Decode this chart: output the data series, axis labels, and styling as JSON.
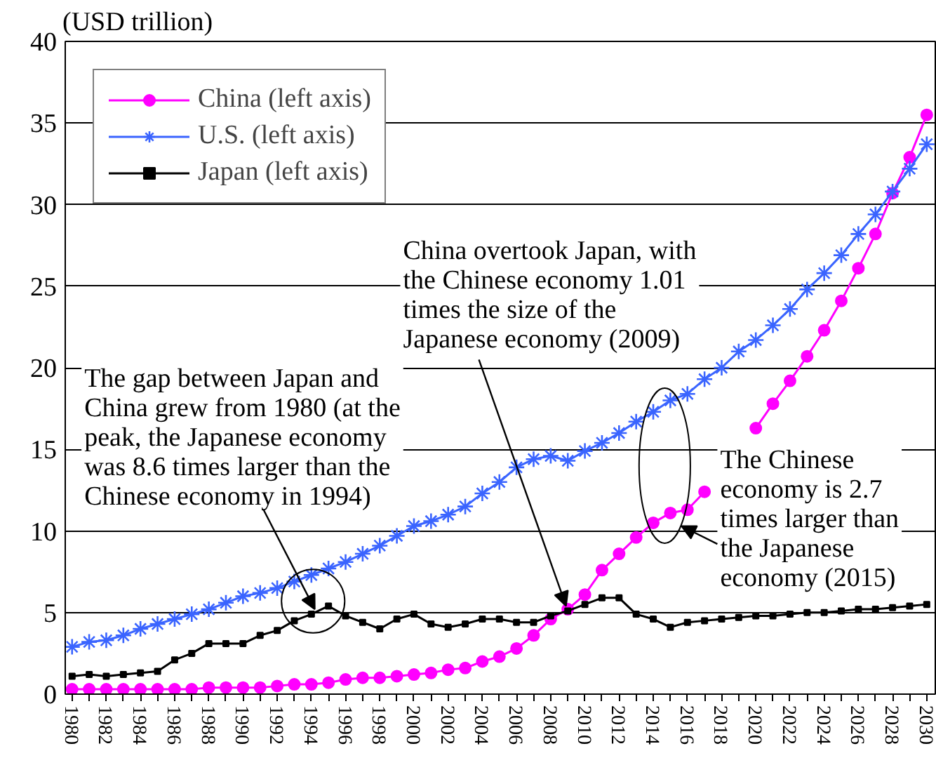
{
  "chart_data": {
    "type": "line",
    "ylabel": "(USD trillion)",
    "x": [
      1980,
      1981,
      1982,
      1983,
      1984,
      1985,
      1986,
      1987,
      1988,
      1989,
      1990,
      1991,
      1992,
      1993,
      1994,
      1995,
      1996,
      1997,
      1998,
      1999,
      2000,
      2001,
      2002,
      2003,
      2004,
      2005,
      2006,
      2007,
      2008,
      2009,
      2010,
      2011,
      2012,
      2013,
      2014,
      2015,
      2016,
      2017,
      2018,
      2019,
      2020,
      2021,
      2022,
      2023,
      2024,
      2025,
      2026,
      2027,
      2028,
      2029,
      2030
    ],
    "series": [
      {
        "name": "China (left axis)",
        "color": "#ff00ff",
        "marker": "circle",
        "values": [
          0.3,
          0.3,
          0.3,
          0.3,
          0.3,
          0.3,
          0.3,
          0.3,
          0.4,
          0.4,
          0.4,
          0.4,
          0.5,
          0.6,
          0.6,
          0.7,
          0.9,
          1.0,
          1.0,
          1.1,
          1.2,
          1.3,
          1.5,
          1.6,
          2.0,
          2.3,
          2.8,
          3.6,
          4.6,
          5.2,
          6.1,
          7.6,
          8.6,
          9.6,
          10.5,
          11.1,
          11.3,
          12.4,
          null,
          null,
          16.3,
          17.8,
          19.2,
          20.7,
          22.3,
          24.1,
          26.1,
          28.2,
          30.7,
          32.9,
          35.5
        ]
      },
      {
        "name": "U.S. (left axis)",
        "color": "#3a64ff",
        "marker": "cross",
        "values": [
          2.9,
          3.2,
          3.3,
          3.6,
          4.0,
          4.3,
          4.6,
          4.9,
          5.2,
          5.6,
          6.0,
          6.2,
          6.5,
          6.9,
          7.3,
          7.7,
          8.1,
          8.6,
          9.1,
          9.7,
          10.3,
          10.6,
          11.0,
          11.5,
          12.3,
          13.0,
          13.9,
          14.4,
          14.6,
          14.3,
          14.9,
          15.4,
          16.0,
          16.7,
          17.3,
          18.0,
          18.4,
          19.3,
          20.0,
          21.0,
          21.7,
          22.6,
          23.6,
          24.8,
          25.8,
          26.9,
          28.2,
          29.4,
          30.8,
          32.2,
          33.7
        ]
      },
      {
        "name": "Japan (left axis)",
        "color": "#000000",
        "marker": "square",
        "values": [
          1.1,
          1.2,
          1.1,
          1.2,
          1.3,
          1.4,
          2.1,
          2.5,
          3.1,
          3.1,
          3.1,
          3.6,
          3.9,
          4.5,
          4.9,
          5.4,
          4.8,
          4.4,
          4.0,
          4.6,
          4.9,
          4.3,
          4.1,
          4.3,
          4.6,
          4.6,
          4.4,
          4.4,
          4.8,
          5.1,
          5.5,
          5.9,
          5.9,
          4.9,
          4.6,
          4.1,
          4.4,
          4.5,
          4.6,
          4.7,
          4.8,
          4.8,
          4.9,
          5.0,
          5.0,
          5.1,
          5.2,
          5.2,
          5.3,
          5.4,
          5.5
        ]
      }
    ],
    "xlim": [
      1979.6,
      2030.5
    ],
    "ylim": [
      0,
      40
    ],
    "xticks": [
      1980,
      {
        "value": 1981,
        "label": null
      },
      1982,
      {
        "value": 1983,
        "label": null
      },
      1984,
      {
        "value": 1985,
        "label": null
      },
      1986,
      {
        "value": 1987,
        "label": null
      },
      1988,
      {
        "value": 1989,
        "label": null
      },
      1990,
      {
        "value": 1991,
        "label": null
      },
      1992,
      {
        "value": 1993,
        "label": null
      },
      1994,
      {
        "value": 1995,
        "label": null
      },
      1996,
      {
        "value": 1997,
        "label": null
      },
      1998,
      {
        "value": 1999,
        "label": null
      },
      2000,
      {
        "value": 2001,
        "label": null
      },
      2002,
      {
        "value": 2003,
        "label": null
      },
      2004,
      {
        "value": 2005,
        "label": null
      },
      2006,
      {
        "value": 2007,
        "label": null
      },
      2008,
      {
        "value": 2009,
        "label": null
      },
      2010,
      {
        "value": 2011,
        "label": null
      },
      2012,
      {
        "value": 2013,
        "label": null
      },
      2014,
      {
        "value": 2015,
        "label": null
      },
      2016,
      {
        "value": 2017,
        "label": null
      },
      2018,
      {
        "value": 2019,
        "label": null
      },
      2020,
      {
        "value": 2021,
        "label": null
      },
      2022,
      {
        "value": 2023,
        "label": null
      },
      2024,
      {
        "value": 2025,
        "label": null
      },
      2026,
      {
        "value": 2027,
        "label": null
      },
      2028,
      {
        "value": 2029,
        "label": null
      },
      2030
    ],
    "yticks": [
      0,
      5,
      10,
      15,
      20,
      25,
      30,
      35,
      40
    ],
    "grid": "y",
    "legend": "top left",
    "annotations": [
      {
        "text": "The gap between Japan and China grew from 1980 (at the peak, the Japanese economy was 8.6 times larger than the Chinese economy in 1994)",
        "x": 1994,
        "y": 4.9
      },
      {
        "text": "China overtook Japan, with the Chinese economy 1.01 times the size of the Japanese economy (2009)",
        "x": 2009,
        "y": 5.2
      },
      {
        "text": "The Chinese economy is 2.7 times larger than the Japanese economy (2015)",
        "x": 2015,
        "y": 11.1
      }
    ]
  }
}
